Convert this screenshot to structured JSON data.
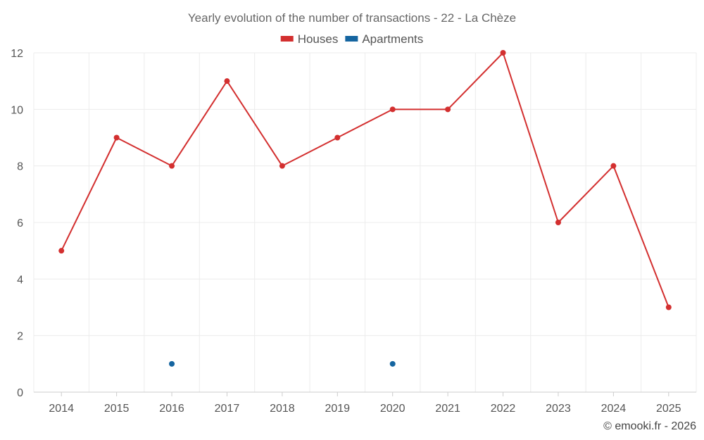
{
  "chart_data": {
    "type": "line",
    "title": "Yearly evolution of the number of transactions - 22 - La Chèze",
    "categories": [
      "2014",
      "2015",
      "2016",
      "2017",
      "2018",
      "2019",
      "2020",
      "2021",
      "2022",
      "2023",
      "2024",
      "2025"
    ],
    "series": [
      {
        "name": "Houses",
        "color": "#d32f2f",
        "connected": true,
        "values": [
          5,
          9,
          8,
          11,
          8,
          9,
          10,
          10,
          12,
          6,
          8,
          3
        ]
      },
      {
        "name": "Apartments",
        "color": "#1565a0",
        "connected": false,
        "values": [
          null,
          null,
          1,
          null,
          null,
          null,
          1,
          null,
          null,
          null,
          null,
          null
        ]
      }
    ],
    "ylim": [
      0,
      12
    ],
    "yticks": [
      0,
      2,
      4,
      6,
      8,
      10,
      12
    ],
    "xlabel": "",
    "ylabel": "",
    "grid": true,
    "legend_position": "top-center"
  },
  "footer": {
    "credit": "© emooki.fr - 2026"
  }
}
